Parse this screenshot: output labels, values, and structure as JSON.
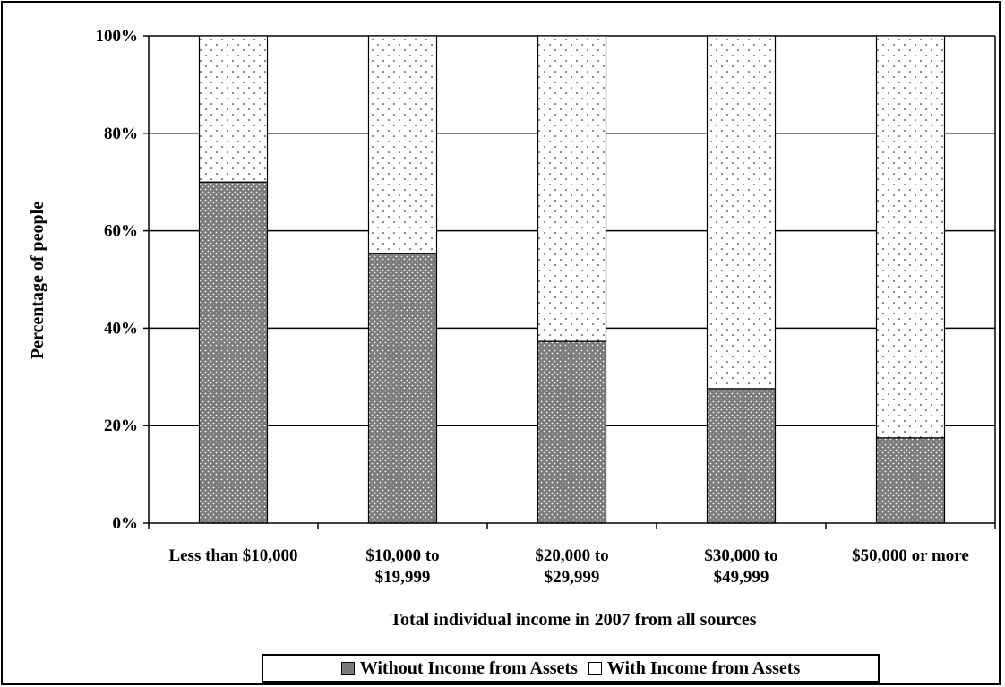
{
  "colors": {
    "without_fill": "#7a7a7a",
    "with_fill": "#ffffff",
    "gridline": "#000000"
  },
  "chart_data": {
    "type": "bar",
    "stacked": true,
    "percent_stacked": true,
    "title": "",
    "xlabel": "Total individual income in 2007 from all sources",
    "ylabel": "Percentage of people",
    "categories": [
      [
        "Less than $10,000"
      ],
      [
        "$10,000 to",
        "$19,999"
      ],
      [
        "$20,000 to",
        "$29,999"
      ],
      [
        "$30,000 to",
        "$49,999"
      ],
      [
        "$50,000 or more"
      ]
    ],
    "series": [
      {
        "name": "Without Income from Assets",
        "values": [
          70,
          55.3,
          37.3,
          27.6,
          17.5
        ]
      },
      {
        "name": "With Income from Assets",
        "values": [
          30,
          44.7,
          62.7,
          72.4,
          82.5
        ]
      }
    ],
    "ylim": [
      0,
      100
    ],
    "yticks": [
      "0%",
      "20%",
      "40%",
      "60%",
      "80%",
      "100%"
    ],
    "grid": true,
    "legend_position": "bottom"
  }
}
